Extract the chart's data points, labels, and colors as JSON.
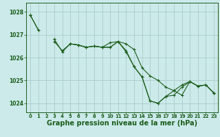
{
  "background_color": "#cceaea",
  "grid_color": "#aacccc",
  "line_color": "#1a5c1a",
  "xlabel": "Graphe pression niveau de la mer (hPa)",
  "xlabel_fontsize": 7,
  "yticks": [
    1024,
    1025,
    1026,
    1027,
    1028
  ],
  "xticks": [
    0,
    1,
    2,
    3,
    4,
    5,
    6,
    7,
    8,
    9,
    10,
    11,
    12,
    13,
    14,
    15,
    16,
    17,
    18,
    19,
    20,
    21,
    22,
    23
  ],
  "xlim": [
    -0.5,
    23.5
  ],
  "ylim": [
    1023.6,
    1028.4
  ],
  "series": [
    [
      1027.85,
      1027.2,
      null,
      1026.8,
      null,
      1026.6,
      1026.55,
      1026.45,
      1026.5,
      1026.45,
      1026.45,
      1026.7,
      1026.6,
      1026.35,
      1025.55,
      1025.2,
      1025.0,
      1024.7,
      1024.55,
      1024.8,
      1024.95,
      1024.75,
      1024.8,
      1024.45
    ],
    [
      1027.85,
      1027.2,
      null,
      1026.7,
      1026.3,
      1026.6,
      1026.55,
      1026.45,
      1026.5,
      1026.45,
      1026.45,
      1026.7,
      1026.25,
      1025.6,
      1025.15,
      1024.1,
      1024.0,
      1024.3,
      1024.55,
      1024.35,
      1024.95,
      1024.75,
      1024.8,
      1024.45
    ],
    [
      1027.85,
      null,
      null,
      1026.8,
      1026.25,
      1026.6,
      1026.55,
      1026.45,
      1026.5,
      1026.45,
      1026.65,
      1026.7,
      1026.3,
      1025.6,
      1025.15,
      1024.1,
      1024.0,
      1024.3,
      1024.35,
      1024.7,
      1024.95,
      1024.75,
      1024.8,
      1024.45
    ],
    [
      1027.85,
      null,
      null,
      null,
      null,
      null,
      null,
      null,
      null,
      null,
      null,
      null,
      null,
      null,
      null,
      null,
      null,
      null,
      null,
      null,
      null,
      null,
      null,
      1024.45
    ]
  ]
}
